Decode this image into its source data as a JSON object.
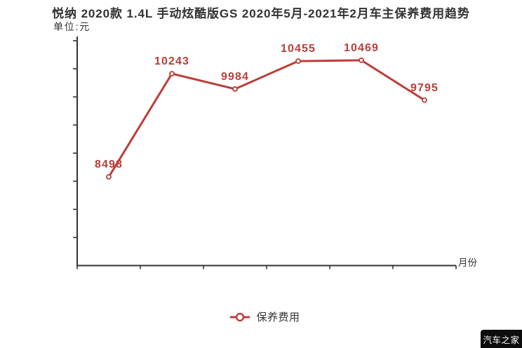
{
  "title": "悦纳 2020款 1.4L 手动炫酷版GS 2020年5月-2021年2月车主保养费用趋势",
  "y_axis": {
    "unit_label": "单位:元"
  },
  "x_axis": {
    "name": "月份"
  },
  "legend": {
    "label": "保养费用"
  },
  "watermark": {
    "text": "汽车之家"
  },
  "colors": {
    "series_red": "#bb3e38",
    "axis": "#333333"
  },
  "chart_data": {
    "type": "line",
    "title": "悦纳 2020款 1.4L 手动炫酷版GS 2020年5月-2021年2月车主保养费用趋势",
    "ylabel": "单位:元",
    "xlabel": "月份",
    "categories": [
      "",
      "",
      "",
      "",
      "",
      ""
    ],
    "series": [
      {
        "name": "保养费用",
        "values": [
          8498,
          10243,
          9984,
          10455,
          10469,
          9795
        ]
      }
    ],
    "point_labels": [
      "8498",
      "10243",
      "9984",
      "10455",
      "10469",
      "9795"
    ],
    "ylim": [
      7000,
      10800
    ],
    "grid": false,
    "legend_position": "bottom",
    "x_tick_labels_visible": false,
    "line_color": "#bb3e38",
    "marker": "empty-circle"
  }
}
